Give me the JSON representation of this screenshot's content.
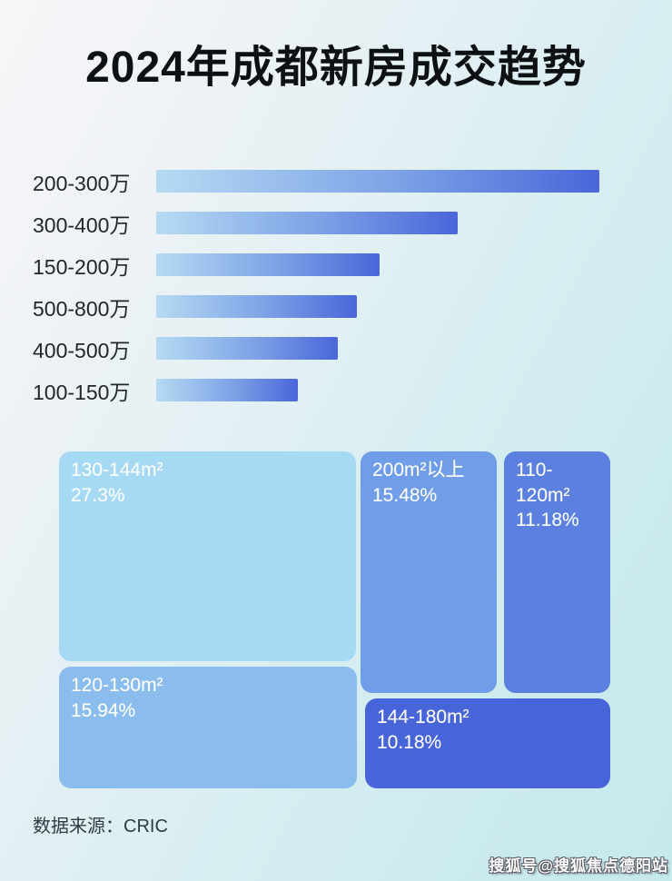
{
  "title": "2024年成都新房成交趋势",
  "source_text": "数据来源：CRIC",
  "watermark": "搜狐号@搜狐焦点德阳站",
  "colors": {
    "background_top_left": "#f7f6f9",
    "background_bottom_right": "#c6e9ec",
    "bar_gradient_start": "#b5dbf3",
    "bar_gradient_mid": "#7da1e6",
    "bar_gradient_end": "#4a66d9",
    "bar_label_text": "#22272d",
    "title_text": "#0e1114",
    "treemap_text": "#ffffff"
  },
  "chart_data": [
    {
      "type": "bar",
      "orientation": "horizontal",
      "categories": [
        "200-300万",
        "300-400万",
        "150-200万",
        "500-800万",
        "400-500万",
        "100-150万"
      ],
      "values": [
        488,
        332,
        246,
        221,
        200,
        156
      ],
      "values_unit": "relative-bar-length-px (no numeric labels shown in image)",
      "grid": false,
      "legend": false,
      "axis_labels": false
    },
    {
      "type": "treemap",
      "items": [
        {
          "label": "130-144m²",
          "percent": "27.3%",
          "value": 27.3,
          "color": "#a6d9f3"
        },
        {
          "label": "120-130m²",
          "percent": "15.94%",
          "value": 15.94,
          "color": "#8abded"
        },
        {
          "label": "200m²以上",
          "percent": "15.48%",
          "value": 15.48,
          "color": "#6f9de8"
        },
        {
          "label": "110-120m²",
          "percent": "11.18%",
          "value": 11.18,
          "color": "#5b80e0"
        },
        {
          "label": "144-180m²",
          "percent": "10.18%",
          "value": 10.18,
          "color": "#4765d9"
        }
      ],
      "legend": false
    }
  ]
}
